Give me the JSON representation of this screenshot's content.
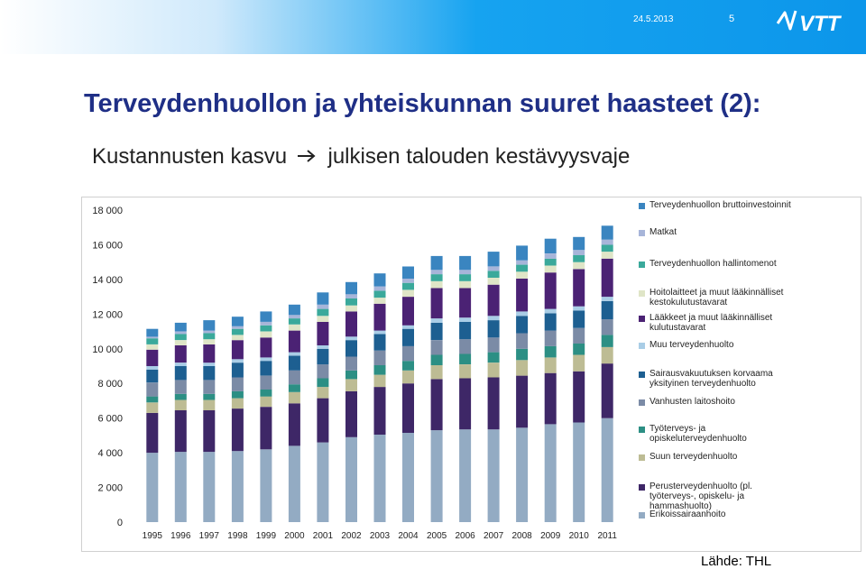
{
  "header": {
    "date": "24.5.2013",
    "page_number": "5",
    "logo_text": "VTT",
    "colors": {
      "accent": "#0c96ea",
      "title": "#1f2f86"
    }
  },
  "slide": {
    "title": "Terveydenhuollon  ja yhteiskunnan suuret haasteet (2):",
    "subtitle_part1": "Kustannusten kasvu",
    "subtitle_arrow_icon": "arrow-right-icon",
    "subtitle_part2": "julkisen talouden kestävyysvaje",
    "source": "Lähde: THL"
  },
  "chart_data": {
    "type": "bar",
    "stacked": true,
    "ylim": [
      0,
      18000
    ],
    "yticks": [
      0,
      2000,
      4000,
      6000,
      8000,
      10000,
      12000,
      14000,
      16000,
      18000
    ],
    "ytick_labels": [
      "0",
      "2 000",
      "4 000",
      "6 000",
      "8 000",
      "10 000",
      "12 000",
      "14 000",
      "16 000",
      "18 000"
    ],
    "grid": false,
    "legend_position": "right",
    "categories": [
      "1995",
      "1996",
      "1997",
      "1998",
      "1999",
      "2000",
      "2001",
      "2002",
      "2003",
      "2004",
      "2005",
      "2006",
      "2007",
      "2008",
      "2009",
      "2010",
      "2011"
    ],
    "series": [
      {
        "name": "Erikoissairaanhoito",
        "color": "#93abc3",
        "values": [
          4000,
          4050,
          4050,
          4100,
          4200,
          4400,
          4600,
          4900,
          5050,
          5150,
          5300,
          5350,
          5350,
          5450,
          5650,
          5750,
          6000
        ]
      },
      {
        "name": "Perusterveydenhuolto (pl. työterveys-, opiskelu- ja hammashuolto)",
        "color": "#3e2767",
        "values": [
          2300,
          2400,
          2400,
          2450,
          2450,
          2450,
          2550,
          2650,
          2750,
          2850,
          2950,
          2950,
          3000,
          3000,
          2950,
          2950,
          3150
        ]
      },
      {
        "name": "Suun terveydenhuolto",
        "color": "#bdbc94",
        "values": [
          600,
          600,
          600,
          600,
          600,
          650,
          650,
          700,
          700,
          750,
          800,
          800,
          850,
          900,
          900,
          950,
          950
        ]
      },
      {
        "name": "Työterveys- ja opiskeluterveydenhuolto",
        "color": "#2c8f84",
        "values": [
          350,
          350,
          350,
          400,
          400,
          450,
          500,
          500,
          550,
          550,
          600,
          600,
          600,
          650,
          650,
          650,
          700
        ]
      },
      {
        "name": "Vanhusten laitoshoito",
        "color": "#7b8ba6",
        "values": [
          800,
          800,
          800,
          800,
          800,
          800,
          800,
          800,
          850,
          850,
          850,
          850,
          850,
          900,
          900,
          900,
          900
        ]
      },
      {
        "name": "Sairausvakuutuksen korvaama yksityinen terveydenhuolto",
        "color": "#1d5f91",
        "values": [
          750,
          800,
          800,
          850,
          850,
          850,
          900,
          950,
          950,
          1000,
          1000,
          1000,
          1000,
          1000,
          1000,
          1000,
          1050
        ]
      },
      {
        "name": "Muu terveydenhuolto",
        "color": "#a9cde6",
        "values": [
          200,
          200,
          200,
          200,
          200,
          200,
          200,
          200,
          200,
          200,
          250,
          250,
          250,
          250,
          250,
          250,
          250
        ]
      },
      {
        "name": "Lääkkeet ja muut lääkinnälliset kulutustavarat",
        "color": "#4b2274",
        "values": [
          950,
          1000,
          1050,
          1100,
          1150,
          1250,
          1350,
          1450,
          1550,
          1650,
          1750,
          1700,
          1800,
          1900,
          2100,
          2150,
          2200
        ]
      },
      {
        "name": "Hoitolaitteet ja muut lääkinnälliset kestokulutustavarat",
        "color": "#dfe5c7",
        "values": [
          300,
          300,
          300,
          300,
          350,
          350,
          350,
          350,
          350,
          400,
          400,
          400,
          400,
          400,
          400,
          400,
          400
        ]
      },
      {
        "name": "Terveydenhuollon hallintomenot",
        "color": "#3aa99b",
        "values": [
          350,
          350,
          350,
          350,
          350,
          350,
          400,
          400,
          400,
          400,
          400,
          400,
          400,
          400,
          400,
          400,
          400
        ]
      },
      {
        "name": "Matkat",
        "color": "#a7b5d9",
        "values": [
          100,
          150,
          150,
          150,
          200,
          200,
          250,
          250,
          250,
          250,
          250,
          250,
          250,
          250,
          300,
          300,
          300
        ]
      },
      {
        "name": "Terveydenhuollon bruttoinvestoinnit",
        "color": "#3a85c0",
        "values": [
          450,
          500,
          600,
          550,
          600,
          600,
          700,
          700,
          750,
          700,
          800,
          800,
          850,
          850,
          850,
          750,
          800
        ]
      }
    ]
  }
}
